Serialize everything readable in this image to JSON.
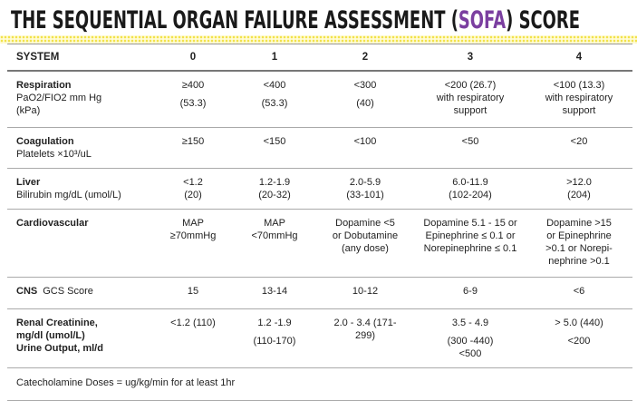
{
  "title": {
    "before": "THE SEQUENTIAL ORGAN FAILURE ASSESSMENT (",
    "highlight": "SOFA",
    "after": ") SCORE"
  },
  "table": {
    "header": [
      "SYSTEM",
      "0",
      "1",
      "2",
      "3",
      "4"
    ],
    "rows": [
      {
        "system": [
          "Respiration"
        ],
        "detail": [
          "PaO2/FIO2 mm Hg",
          "(kPa)"
        ],
        "cells": [
          [
            "≥400",
            "(53.3)"
          ],
          [
            "<400",
            "(53.3)"
          ],
          [
            "<300",
            "(40)"
          ],
          [
            "<200 (26.7)",
            "with respiratory",
            "support"
          ],
          [
            "<100 (13.3)",
            "with respiratory",
            "support"
          ]
        ]
      },
      {
        "system": [
          "Coagulation"
        ],
        "detail": [
          "Platelets ×10³/uL"
        ],
        "cells": [
          [
            "≥150"
          ],
          [
            "<150"
          ],
          [
            "<100"
          ],
          [
            "<50"
          ],
          [
            "<20"
          ]
        ]
      },
      {
        "system": [
          "Liver"
        ],
        "detail": [
          "Bilirubin mg/dL (umol/L)"
        ],
        "cells": [
          [
            "<1.2",
            "(20)"
          ],
          [
            "1.2-1.9",
            "(20-32)"
          ],
          [
            "2.0-5.9",
            "(33-101)"
          ],
          [
            "6.0-11.9",
            "(102-204)"
          ],
          [
            ">12.0",
            "(204)"
          ]
        ]
      },
      {
        "system": [
          "Cardiovascular"
        ],
        "detail": [],
        "cells": [
          [
            "MAP",
            "≥70mmHg"
          ],
          [
            "MAP",
            "<70mmHg"
          ],
          [
            "Dopamine <5",
            "or Dobutamine",
            "(any dose)"
          ],
          [
            "Dopamine 5.1 - 15 or",
            "Epinephrine ≤ 0.1 or",
            "Norepinephrine ≤ 0.1"
          ],
          [
            "Dopamine >15",
            "or Epinephrine",
            ">0.1 or Norepi-",
            "nephrine >0.1"
          ]
        ]
      },
      {
        "system": [
          "CNS"
        ],
        "detail": [
          "GCS Score"
        ],
        "cells": [
          [
            "15"
          ],
          [
            "13-14"
          ],
          [
            "10-12"
          ],
          [
            "6-9"
          ],
          [
            "<6"
          ]
        ]
      },
      {
        "system": [
          "Renal Creatinine,",
          "mg/dl (umol/L)",
          "Urine Output, ml/d"
        ],
        "detail": [],
        "cells": [
          [
            "<1.2 (110)"
          ],
          [
            "1.2 -1.9",
            "(110-170)"
          ],
          [
            "2.0 - 3.4 (171-",
            "299)"
          ],
          [
            "3.5 - 4.9",
            "(300 -440)",
            "<500"
          ],
          [
            "> 5.0 (440)",
            "<200"
          ]
        ]
      }
    ],
    "footnote": "Catecholamine Doses = ug/kg/min for at least 1hr"
  }
}
